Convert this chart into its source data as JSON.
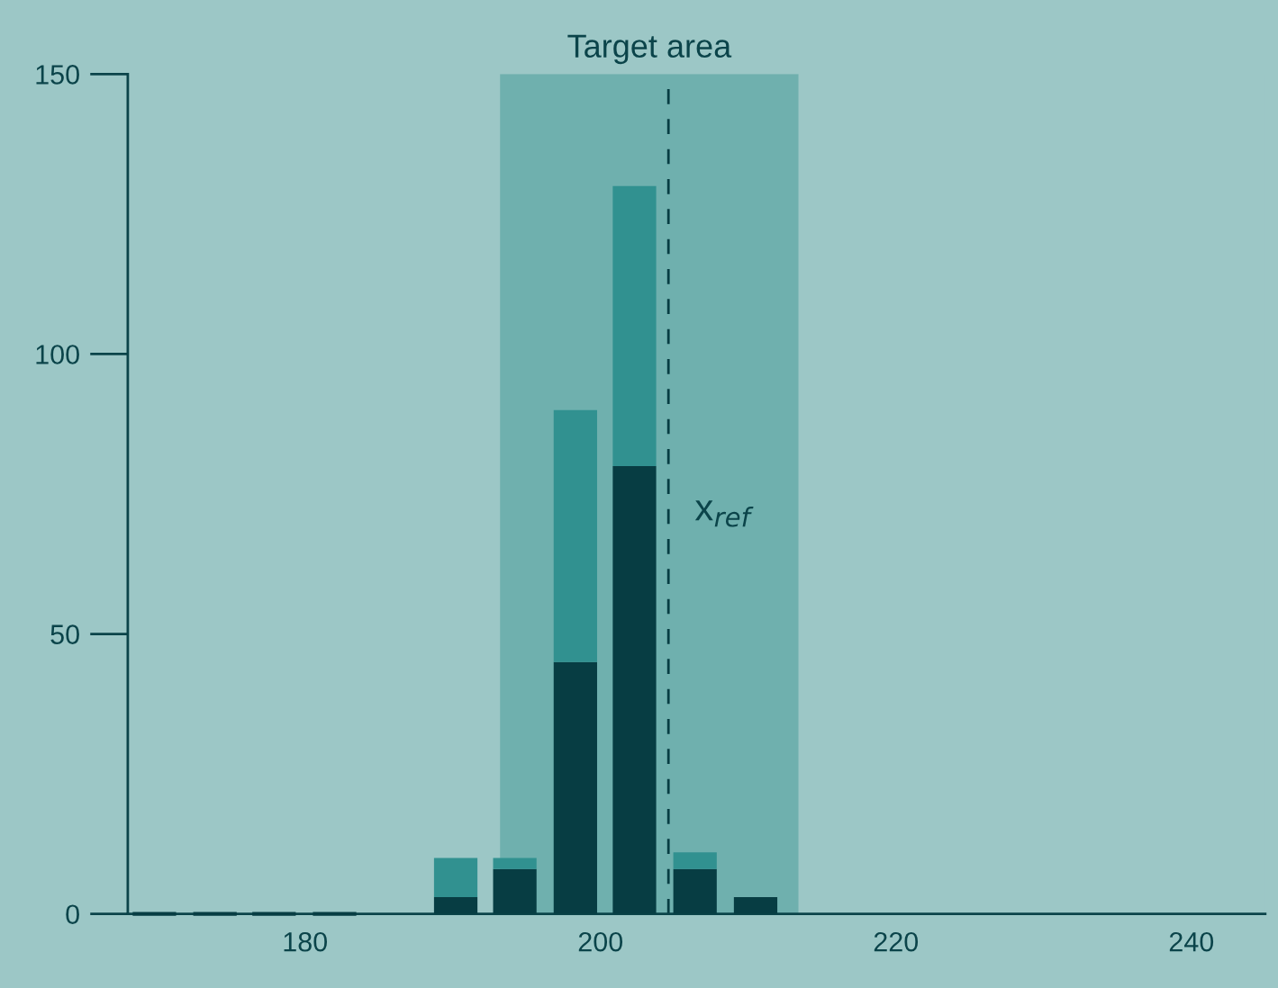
{
  "chart_data": {
    "type": "bar",
    "stacked": true,
    "x": [
      169.8,
      173.9,
      177.9,
      182.0,
      190.2,
      194.2,
      198.3,
      202.3,
      206.4,
      210.5
    ],
    "series": [
      {
        "color": "#073d43",
        "values": [
          0,
          0,
          0,
          0,
          3,
          8,
          45,
          80,
          8,
          3
        ]
      },
      {
        "color": "#319190",
        "values": [
          0,
          0,
          0,
          0,
          7,
          2,
          45,
          50,
          3,
          0
        ]
      }
    ],
    "xlim": [
      168,
      245
    ],
    "xticks": [
      180,
      200,
      220,
      240
    ],
    "ylim": [
      0,
      150
    ],
    "yticks": [
      0,
      50,
      100,
      150
    ],
    "bands": [
      {
        "axis": "x",
        "from": 193.2,
        "to": 213.4,
        "label": "Target area",
        "color": "#6fb0ae"
      }
    ],
    "ref_lines": [
      {
        "axis": "x",
        "value": 204.6,
        "label": "x$_{ref}$",
        "color": "#073d43",
        "line_style": "dashed"
      }
    ],
    "grid": false,
    "legend": false
  }
}
